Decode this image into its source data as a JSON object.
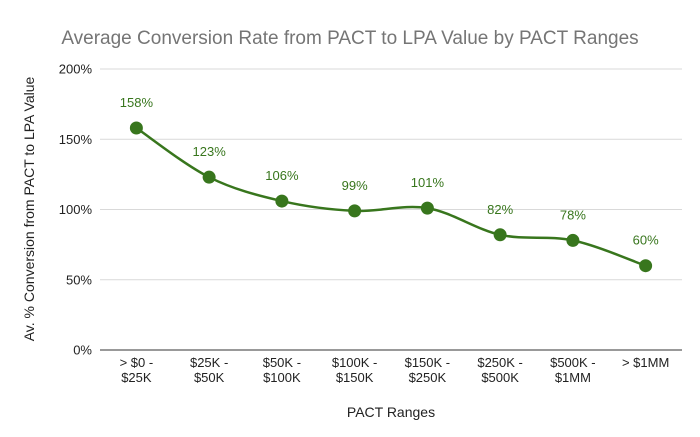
{
  "chart_data": {
    "type": "line",
    "title": "Average Conversion Rate from PACT to LPA Value by PACT Ranges",
    "xlabel": "PACT Ranges",
    "ylabel": "Av. % Conversion from PACT to LPA Value",
    "categories": [
      [
        "> $0 -",
        "$25K"
      ],
      [
        "$25K -",
        "$50K"
      ],
      [
        "$50K -",
        "$100K"
      ],
      [
        "$100K -",
        "$150K"
      ],
      [
        "$150K -",
        "$250K"
      ],
      [
        "$250K -",
        "$500K"
      ],
      [
        "$500K -",
        "$1MM"
      ],
      [
        "> $1MM"
      ]
    ],
    "values": [
      158,
      123,
      106,
      99,
      101,
      82,
      78,
      60
    ],
    "data_labels": [
      "158%",
      "123%",
      "106%",
      "99%",
      "101%",
      "82%",
      "78%",
      "60%"
    ],
    "ylim": [
      0,
      200
    ],
    "yticks": [
      0,
      50,
      100,
      150,
      200
    ],
    "ytick_labels": [
      "0%",
      "50%",
      "100%",
      "150%",
      "200%"
    ],
    "grid": true,
    "legend": "none",
    "series_color": "#38761d"
  }
}
